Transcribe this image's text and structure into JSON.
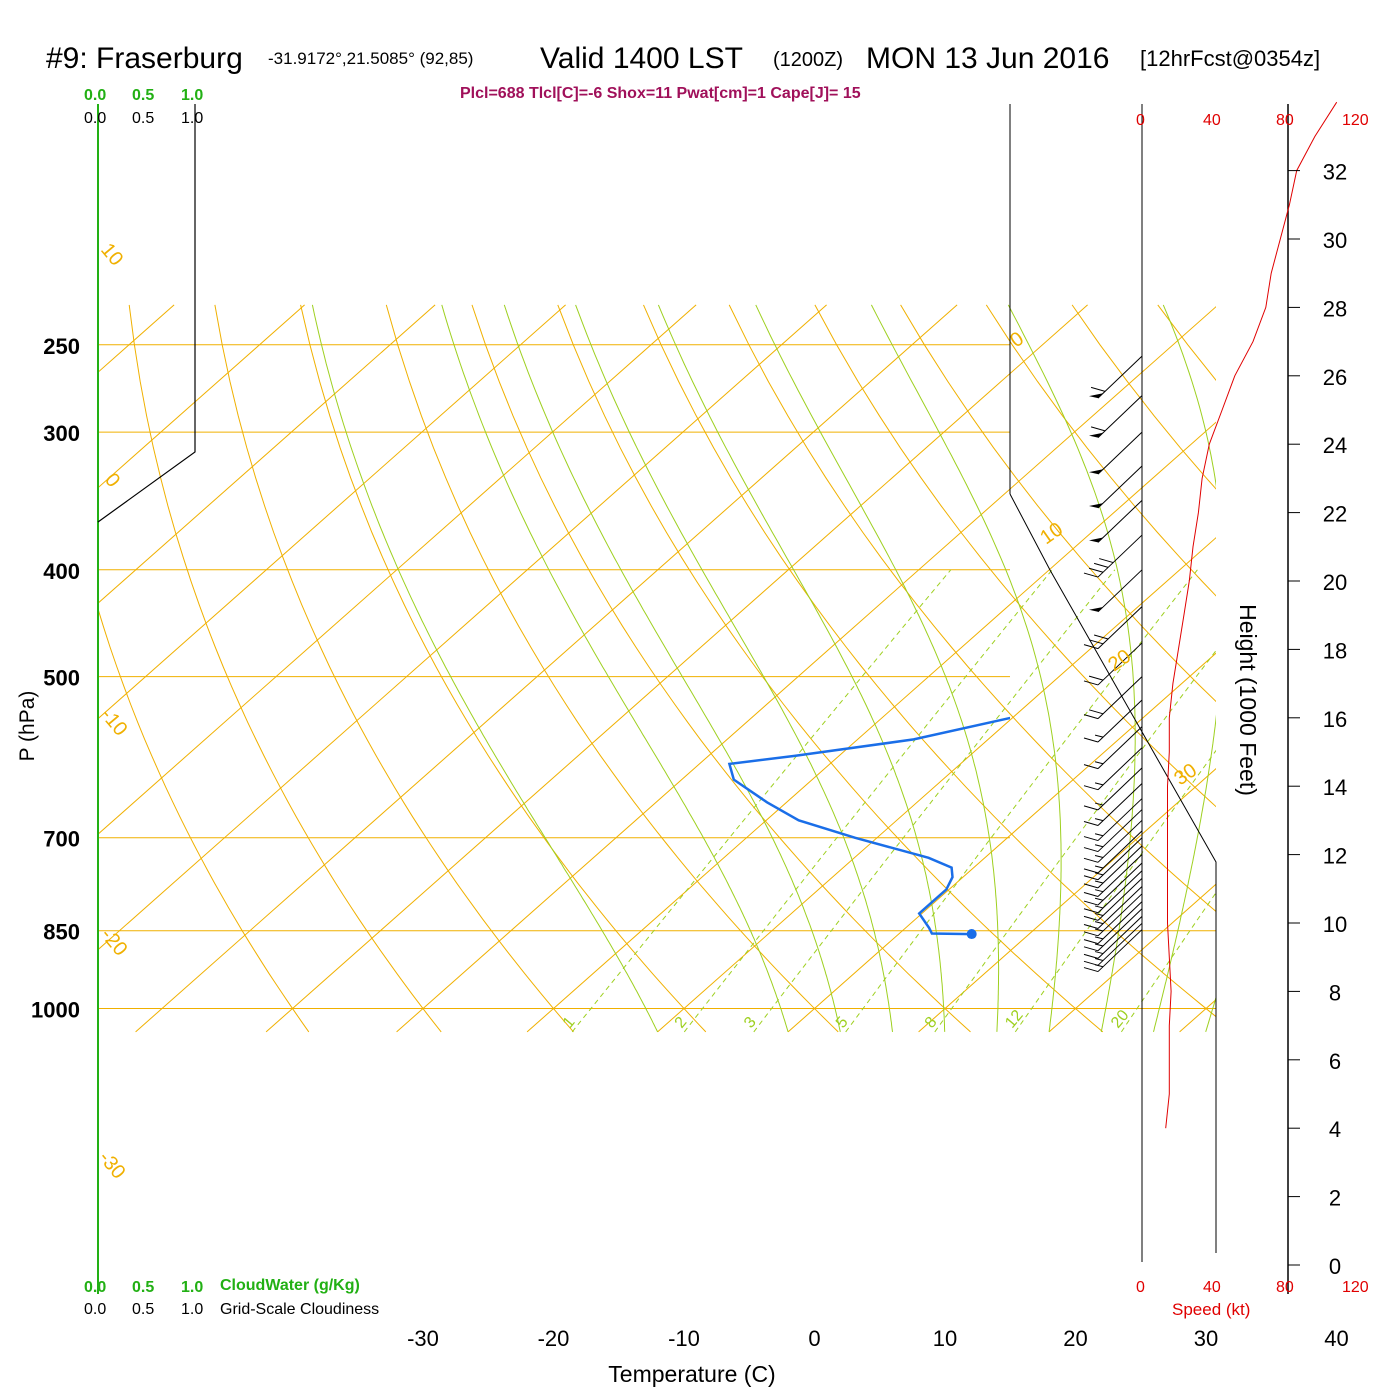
{
  "header": {
    "station": "#9: Fraserburg",
    "coords": "-31.9172°,21.5085° (92,85)",
    "valid": "Valid 1400 LST",
    "zulu": "(1200Z)",
    "date": "MON 13 Jun 2016",
    "forecast": "[12hrFcst@0354z]",
    "indices": "Plcl=688 Tlcl[C]=-6 Shox=11 Pwat[cm]=1 Cape[J]= 15"
  },
  "colors": {
    "temperature": "#e8101a",
    "dewpoint": "#1a6ee8",
    "isotherm": "#f0b000",
    "dry_adiabat": "#f0b000",
    "moist_adiabat": "#9ed020",
    "mixing_ratio": "#9ed020",
    "cloud_axis": "#22b014",
    "indices_text": "#a0105a",
    "speed": "#e00000"
  },
  "cloud_scale": {
    "water_ticks": [
      "0.0",
      "0.5",
      "1.0"
    ],
    "cover_ticks": [
      "0.0",
      "0.5",
      "1.0"
    ],
    "water_label": "CloudWater (g/Kg)",
    "cover_label": "Grid-Scale Cloudiness"
  },
  "speed_scale": {
    "ticks": [
      "0",
      "40",
      "80",
      "120"
    ],
    "label": "Speed (kt)"
  },
  "chart_data": {
    "type": "line",
    "title": "#9: Fraserburg",
    "xlabel": "Temperature (C)",
    "ylabel": "P (hPa)",
    "y2label": "Height (1000 Feet)",
    "x_ticks": [
      -30,
      -20,
      -10,
      0,
      10,
      20,
      30,
      40
    ],
    "y_ticks": [
      250,
      300,
      400,
      500,
      700,
      850,
      1000
    ],
    "height_ticks": [
      0,
      2,
      4,
      6,
      8,
      10,
      12,
      14,
      16,
      18,
      20,
      22,
      24,
      26,
      28,
      30,
      32
    ],
    "isotherm_labels": [
      {
        "t": 10,
        "text": "10"
      },
      {
        "t": 0,
        "text": "0"
      },
      {
        "t": -10,
        "text": "-10"
      },
      {
        "t": -20,
        "text": "-20"
      },
      {
        "t": -30,
        "text": "-30"
      },
      {
        "t": 0,
        "text": "0",
        "right": true
      },
      {
        "t": 10,
        "text": "10",
        "right": true
      },
      {
        "t": 20,
        "text": "20",
        "right": true
      },
      {
        "t": 30,
        "text": "30",
        "right": true
      }
    ],
    "mixing_ratio_labels": [
      "1",
      "2",
      "3",
      "5",
      "8",
      "12",
      "20"
    ],
    "series": [
      {
        "name": "Temperature",
        "points": [
          [
            856,
            19.4
          ],
          [
            850,
            17.8
          ],
          [
            820,
            15.4
          ],
          [
            800,
            14.1
          ],
          [
            790,
            14.4
          ],
          [
            770,
            14.0
          ],
          [
            740,
            13.9
          ],
          [
            720,
            14.0
          ],
          [
            700,
            12.6
          ],
          [
            680,
            9.9
          ],
          [
            650,
            7.6
          ],
          [
            600,
            2.5
          ],
          [
            560,
            -1.5
          ],
          [
            520,
            -4.9
          ],
          [
            500,
            -5.9
          ],
          [
            480,
            -7.6
          ],
          [
            460,
            -8.9
          ],
          [
            420,
            -12.1
          ],
          [
            400,
            -14.5
          ],
          [
            360,
            -19.2
          ],
          [
            330,
            -23.2
          ],
          [
            300,
            -27.9
          ],
          [
            280,
            -31.0
          ],
          [
            260,
            -34.3
          ],
          [
            252,
            -35.5
          ]
        ]
      },
      {
        "name": "Dewpoint",
        "points": [
          [
            856,
            5.6
          ],
          [
            855,
            2.5
          ],
          [
            845,
            1.8
          ],
          [
            820,
            -0.2
          ],
          [
            780,
            -0.2
          ],
          [
            760,
            -0.8
          ],
          [
            745,
            -1.7
          ],
          [
            730,
            -4.3
          ],
          [
            700,
            -11.7
          ],
          [
            675,
            -17.5
          ],
          [
            650,
            -21.5
          ],
          [
            620,
            -26.0
          ],
          [
            600,
            -27.7
          ],
          [
            590,
            -23.4
          ],
          [
            570,
            -15.7
          ],
          [
            540,
            -9.0
          ],
          [
            510,
            -6.0
          ],
          [
            490,
            -3.0
          ],
          [
            460,
            -5.3
          ],
          [
            430,
            -6.8
          ],
          [
            400,
            -9.0
          ],
          [
            380,
            -10.5
          ],
          [
            350,
            -14.5
          ],
          [
            330,
            -18.6
          ],
          [
            310,
            -21.6
          ],
          [
            290,
            -25.2
          ],
          [
            270,
            -30.1
          ],
          [
            253,
            -34.0
          ]
        ]
      },
      {
        "name": "Parcel",
        "points": [
          [
            856,
            19.4
          ],
          [
            810,
            14.4
          ]
        ]
      }
    ],
    "speed_profile": [
      [
        4.0,
        13
      ],
      [
        5.0,
        15
      ],
      [
        6.0,
        15
      ],
      [
        7.0,
        15
      ],
      [
        8.0,
        16
      ],
      [
        9.0,
        15
      ],
      [
        10.0,
        14
      ],
      [
        11.0,
        14
      ],
      [
        12.0,
        14
      ],
      [
        13.0,
        14
      ],
      [
        14.0,
        14
      ],
      [
        15.0,
        15
      ],
      [
        16.0,
        15
      ],
      [
        17.0,
        17
      ],
      [
        18.0,
        20
      ],
      [
        19.0,
        23
      ],
      [
        20.0,
        26
      ],
      [
        21.0,
        28
      ],
      [
        22.0,
        31
      ],
      [
        23.0,
        33
      ],
      [
        24.0,
        37
      ],
      [
        25.0,
        44
      ],
      [
        26.0,
        51
      ],
      [
        27.0,
        61
      ],
      [
        28.0,
        68
      ],
      [
        29.0,
        71
      ],
      [
        30.0,
        76
      ],
      [
        31.0,
        81
      ],
      [
        32.0,
        85
      ],
      [
        33.0,
        95
      ],
      [
        34.0,
        107
      ]
    ],
    "wind_barbs": [
      {
        "p": 256,
        "speed": 60
      },
      {
        "p": 278,
        "speed": 60
      },
      {
        "p": 300,
        "speed": 50
      },
      {
        "p": 322,
        "speed": 50
      },
      {
        "p": 346,
        "speed": 50
      },
      {
        "p": 372,
        "speed": 40
      },
      {
        "p": 400,
        "speed": 50
      },
      {
        "p": 432,
        "speed": 30
      },
      {
        "p": 466,
        "speed": 20
      },
      {
        "p": 500,
        "speed": 20
      },
      {
        "p": 525,
        "speed": 15
      },
      {
        "p": 555,
        "speed": 15
      },
      {
        "p": 580,
        "speed": 15
      },
      {
        "p": 605,
        "speed": 15
      },
      {
        "p": 625,
        "speed": 15
      },
      {
        "p": 645,
        "speed": 15
      },
      {
        "p": 660,
        "speed": 15
      },
      {
        "p": 675,
        "speed": 15
      },
      {
        "p": 690,
        "speed": 15
      },
      {
        "p": 700,
        "speed": 15
      },
      {
        "p": 712,
        "speed": 15
      },
      {
        "p": 725,
        "speed": 15
      },
      {
        "p": 738,
        "speed": 15
      },
      {
        "p": 750,
        "speed": 15
      },
      {
        "p": 762,
        "speed": 15
      },
      {
        "p": 775,
        "speed": 15
      },
      {
        "p": 787,
        "speed": 15
      },
      {
        "p": 800,
        "speed": 15
      },
      {
        "p": 812,
        "speed": 15
      },
      {
        "p": 825,
        "speed": 15
      },
      {
        "p": 837,
        "speed": 15
      },
      {
        "p": 848,
        "speed": 15
      }
    ]
  }
}
